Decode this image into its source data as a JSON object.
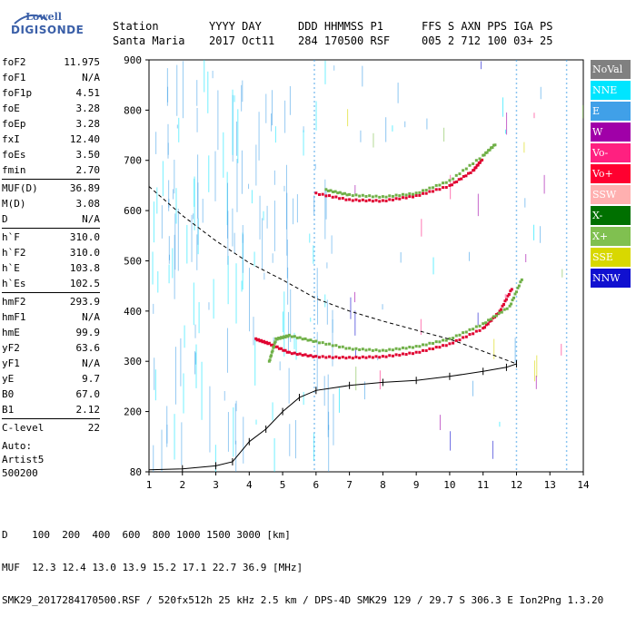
{
  "logo": {
    "line1": "Lowell",
    "line2": "DIGISONDE"
  },
  "header": {
    "row1": [
      "Station",
      "YYYY DAY",
      "DDD HHMMSS P1",
      "FFS S AXN PPS IGA PS"
    ],
    "row2": [
      "Santa Maria",
      "2017 Oct11",
      "284 170500 RSF",
      "005 2 712 100 03+ 25"
    ]
  },
  "params": [
    [
      {
        "k": "foF2",
        "v": "11.975"
      },
      {
        "k": "foF1",
        "v": "N/A"
      },
      {
        "k": "foF1p",
        "v": "4.51"
      },
      {
        "k": "foE",
        "v": "3.28"
      },
      {
        "k": "foEp",
        "v": "3.28"
      },
      {
        "k": "fxI",
        "v": "12.40"
      },
      {
        "k": "foEs",
        "v": "3.50"
      },
      {
        "k": "fmin",
        "v": "2.70"
      }
    ],
    [
      {
        "k": "MUF(D)",
        "v": "36.89"
      },
      {
        "k": "M(D)",
        "v": "3.08"
      },
      {
        "k": "D",
        "v": "N/A"
      }
    ],
    [
      {
        "k": "h`F",
        "v": "310.0"
      },
      {
        "k": "h`F2",
        "v": "310.0"
      },
      {
        "k": "h`E",
        "v": "103.8"
      },
      {
        "k": "h`Es",
        "v": "102.5"
      }
    ],
    [
      {
        "k": "hmF2",
        "v": "293.9"
      },
      {
        "k": "hmF1",
        "v": "N/A"
      },
      {
        "k": "hmE",
        "v": "99.9"
      },
      {
        "k": "yF2",
        "v": "63.6"
      },
      {
        "k": "yF1",
        "v": "N/A"
      },
      {
        "k": "yE",
        "v": "9.7"
      },
      {
        "k": "B0",
        "v": "67.0"
      },
      {
        "k": "B1",
        "v": "2.12"
      }
    ],
    [
      {
        "k": "C-level",
        "v": "22"
      }
    ]
  ],
  "auto": {
    "line1": "Auto:",
    "line2": "Artist5",
    "line3": "500200"
  },
  "legend": [
    {
      "label": "NoVal",
      "color": "#808080"
    },
    {
      "label": "NNE",
      "color": "#00e5ff"
    },
    {
      "label": "E",
      "color": "#40a0e8"
    },
    {
      "label": "W",
      "color": "#a000a8"
    },
    {
      "label": "Vo-",
      "color": "#ff2080"
    },
    {
      "label": "Vo+",
      "color": "#ff0030"
    },
    {
      "label": "SSW",
      "color": "#ffb0b0"
    },
    {
      "label": "X-",
      "color": "#007000"
    },
    {
      "label": "X+",
      "color": "#80c050"
    },
    {
      "label": "SSE",
      "color": "#d8d800"
    },
    {
      "label": "NNW",
      "color": "#1010d0"
    }
  ],
  "footer": {
    "line1": "D    100  200  400  600  800 1000 1500 3000 [km]",
    "line2": "MUF  12.3 12.4 13.0 13.9 15.2 17.1 22.7 36.9 [MHz]",
    "line3": "SMK29_2017284170500.RSF / 520fx512h 25 kHz 2.5 km / DPS-4D SMK29 129 / 29.7 S 306.3 E Ion2Png 1.3.20"
  },
  "chart_data": {
    "type": "scatter",
    "x_ticks": [
      1,
      2,
      3,
      4,
      5,
      6,
      7,
      8,
      9,
      10,
      11,
      12,
      13,
      14
    ],
    "y_ticks": [
      80,
      200,
      300,
      400,
      500,
      600,
      700,
      800,
      900
    ],
    "xlim": [
      1,
      14
    ],
    "ylim": [
      80,
      900
    ],
    "series": [
      {
        "name": "Vo+",
        "points": [
          [
            4.2,
            345
          ],
          [
            4.6,
            336
          ],
          [
            5.2,
            318
          ],
          [
            6,
            310
          ],
          [
            7,
            308
          ],
          [
            8,
            310
          ],
          [
            9,
            318
          ],
          [
            10,
            335
          ],
          [
            11,
            366
          ],
          [
            11.5,
            400
          ],
          [
            11.9,
            450
          ]
        ]
      },
      {
        "name": "X+",
        "points": [
          [
            4.6,
            300
          ],
          [
            4.8,
            345
          ],
          [
            5.2,
            352
          ],
          [
            6,
            340
          ],
          [
            7,
            326
          ],
          [
            8,
            322
          ],
          [
            9,
            330
          ],
          [
            10,
            345
          ],
          [
            11,
            375
          ],
          [
            11.8,
            410
          ],
          [
            12.2,
            470
          ]
        ]
      },
      {
        "name": "Vo+",
        "points": [
          [
            6,
            635
          ],
          [
            7,
            622
          ],
          [
            8,
            620
          ],
          [
            9,
            630
          ],
          [
            10,
            650
          ],
          [
            10.7,
            680
          ],
          [
            11,
            705
          ]
        ]
      },
      {
        "name": "X+",
        "points": [
          [
            6.3,
            642
          ],
          [
            7,
            632
          ],
          [
            8,
            628
          ],
          [
            9,
            635
          ],
          [
            10,
            660
          ],
          [
            11,
            710
          ],
          [
            11.4,
            735
          ]
        ]
      },
      {
        "name": "NoVal",
        "points": [
          [
            1,
            648
          ],
          [
            2,
            590
          ],
          [
            3,
            540
          ],
          [
            4,
            496
          ],
          [
            5,
            462
          ],
          [
            6,
            425
          ],
          [
            7,
            400
          ],
          [
            8,
            380
          ],
          [
            9,
            362
          ],
          [
            10,
            344
          ],
          [
            11,
            320
          ],
          [
            12,
            295
          ]
        ]
      },
      {
        "name": "NoVal",
        "points": [
          [
            1,
            84
          ],
          [
            2,
            86
          ],
          [
            3,
            92
          ],
          [
            3.5,
            100
          ],
          [
            4,
            140
          ],
          [
            4.5,
            165
          ],
          [
            5,
            200
          ],
          [
            5.5,
            228
          ],
          [
            6,
            242
          ],
          [
            7,
            252
          ],
          [
            8,
            258
          ],
          [
            9,
            262
          ],
          [
            10,
            270
          ],
          [
            11,
            280
          ],
          [
            11.7,
            288
          ],
          [
            12,
            295
          ]
        ]
      }
    ]
  }
}
